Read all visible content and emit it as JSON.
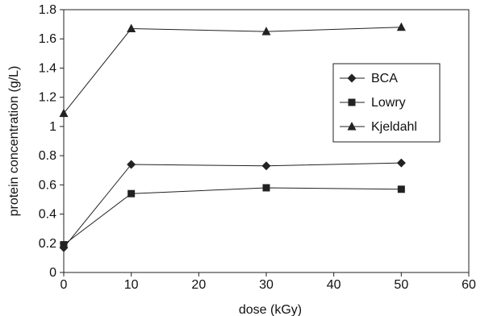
{
  "chart_data": {
    "type": "line",
    "title": "",
    "xlabel": "dose (kGy)",
    "ylabel": "protein concentration (g/L)",
    "xlim": [
      0,
      60
    ],
    "ylim": [
      0,
      1.8
    ],
    "x_ticks": [
      "0",
      "10",
      "20",
      "30",
      "40",
      "50",
      "60"
    ],
    "y_ticks": [
      "0",
      "0.2",
      "0.4",
      "0.6",
      "0.8",
      "1",
      "1.2",
      "1.4",
      "1.6",
      "1.8"
    ],
    "grid": false,
    "legend_position": "right",
    "x": [
      0,
      10,
      30,
      50
    ],
    "series": [
      {
        "name": "BCA",
        "marker": "diamond",
        "values": [
          0.17,
          0.74,
          0.73,
          0.75
        ]
      },
      {
        "name": "Lowry",
        "marker": "square",
        "values": [
          0.19,
          0.54,
          0.58,
          0.57
        ]
      },
      {
        "name": "Kjeldahl",
        "marker": "triangle",
        "values": [
          1.09,
          1.67,
          1.65,
          1.68
        ]
      }
    ],
    "colors": {
      "line": "#222222",
      "marker": "#222222"
    }
  }
}
